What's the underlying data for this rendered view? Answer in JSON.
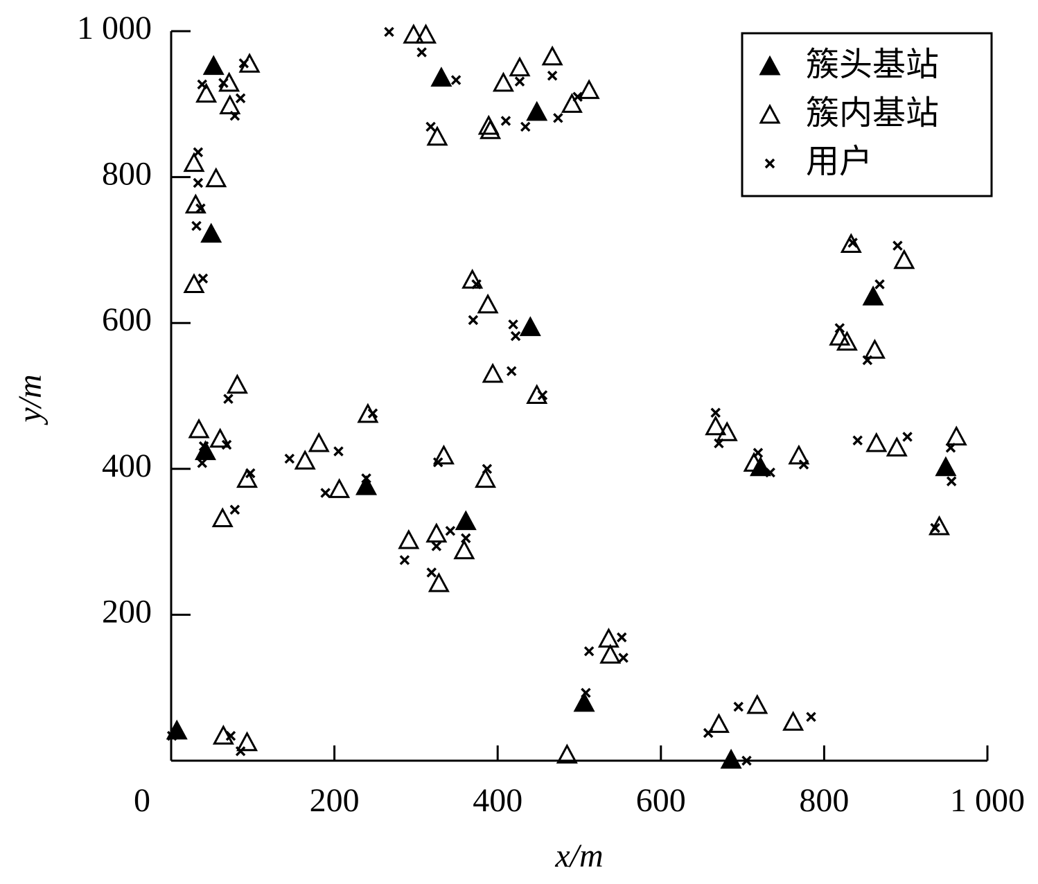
{
  "chart_data": {
    "type": "scatter",
    "xlabel": "x/m",
    "ylabel": "y/m",
    "xlim": [
      0,
      1000
    ],
    "ylim": [
      0,
      1000
    ],
    "xticks": [
      0,
      200,
      400,
      600,
      800,
      {
        "value": 1000,
        "label": "1 000"
      }
    ],
    "yticks": [
      200,
      400,
      600,
      800,
      {
        "value": 1000,
        "label": "1 000"
      }
    ],
    "legend": "upper right",
    "series": [
      {
        "name": "簇头基站",
        "color": "#000000",
        "marker": "filled-triangle",
        "x": [
          52,
          49,
          7,
          42,
          331,
          448,
          440,
          239,
          361,
          506,
          686,
          722,
          860,
          949
        ],
        "y": [
          952,
          722,
          41,
          424,
          936,
          889,
          594,
          376,
          328,
          79,
          1,
          402,
          636,
          402
        ]
      },
      {
        "name": "簇内基站",
        "color": "#000000",
        "marker": "open-triangle",
        "x": [
          96,
          71,
          43,
          72,
          28,
          55,
          30,
          28,
          81,
          34,
          60,
          93,
          63,
          64,
          93,
          164,
          181,
          206,
          241,
          297,
          312,
          326,
          407,
          427,
          467,
          389,
          391,
          491,
          512,
          369,
          388,
          394,
          448,
          291,
          325,
          328,
          334,
          385,
          359,
          485,
          536,
          538,
          671,
          681,
          667,
          714,
          718,
          762,
          769,
          833,
          819,
          828,
          862,
          864,
          889,
          898,
          941,
          962
        ],
        "y": [
          955,
          929,
          914,
          898,
          819,
          798,
          762,
          653,
          515,
          454,
          441,
          386,
          332,
          34,
          25,
          411,
          435,
          372,
          475,
          995,
          995,
          855,
          929,
          950,
          965,
          870,
          864,
          900,
          919,
          659,
          625,
          530,
          501,
          302,
          311,
          243,
          418,
          386,
          288,
          8,
          167,
          145,
          50,
          450,
          458,
          408,
          76,
          53,
          418,
          708,
          581,
          574,
          563,
          435,
          429,
          686,
          321,
          444
        ]
      },
      {
        "name": "用户",
        "color": "#000000",
        "marker": "cross",
        "x": [
          38,
          64,
          85,
          78,
          89,
          33,
          33,
          36,
          31,
          39,
          70,
          40,
          38,
          68,
          97,
          78,
          1,
          73,
          85,
          145,
          205,
          189,
          247,
          239,
          267,
          307,
          349,
          318,
          410,
          427,
          467,
          434,
          474,
          498,
          374,
          370,
          419,
          422,
          417,
          455,
          286,
          325,
          342,
          319,
          327,
          387,
          361,
          508,
          512,
          552,
          554,
          658,
          695,
          705,
          784,
          667,
          671,
          719,
          734,
          775,
          835,
          819,
          853,
          868,
          890,
          841,
          902,
          955,
          956,
          936
        ],
        "y": [
          927,
          929,
          908,
          884,
          956,
          834,
          792,
          757,
          733,
          661,
          496,
          431,
          408,
          433,
          394,
          344,
          34,
          34,
          13,
          414,
          424,
          367,
          476,
          387,
          999,
          971,
          933,
          869,
          877,
          931,
          939,
          869,
          881,
          910,
          653,
          604,
          598,
          582,
          534,
          501,
          275,
          294,
          315,
          258,
          409,
          400,
          305,
          93,
          150,
          169,
          141,
          38,
          74,
          0,
          60,
          477,
          435,
          422,
          395,
          406,
          710,
          593,
          549,
          653,
          706,
          439,
          444,
          429,
          383,
          319
        ]
      }
    ]
  }
}
